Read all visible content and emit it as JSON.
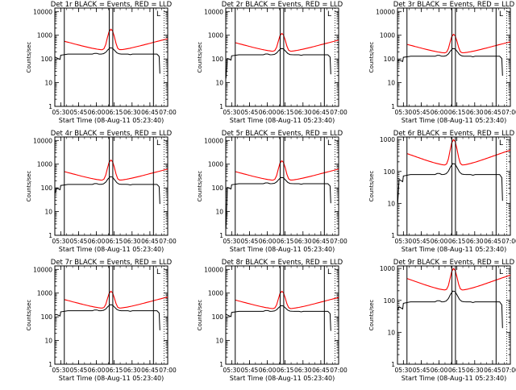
{
  "chart_data": [
    {
      "type": "line",
      "title": "Det 1r BLACK = Events, RED = LLD",
      "xlabel": "Start Time (08-Aug-11 05:23:40)",
      "ylabel": "Counts/sec",
      "ylog": true,
      "ylim": [
        1,
        14000
      ],
      "xlim": [
        5.417,
        7.0
      ],
      "x_tick_labels": [
        "05:30",
        "05:45",
        "06:00",
        "06:15",
        "06:30",
        "06:45",
        "07:00"
      ],
      "y_tick_labels": [
        "1",
        "10",
        "100",
        "1000",
        "10000"
      ],
      "markers": [
        5.55,
        6.18,
        6.23,
        6.8
      ],
      "corner_mark": "L",
      "profile": {
        "red_base": 230,
        "red_peak": 1800,
        "black_base": 160,
        "black_peak": 300,
        "black_start": 120
      }
    },
    {
      "type": "line",
      "title": "Det 2r BLACK = Events, RED = LLD",
      "xlabel": "Start Time (08-Aug-11 05:23:40)",
      "ylabel": "Counts/sec",
      "ylog": true,
      "ylim": [
        1,
        14000
      ],
      "xlim": [
        5.417,
        7.0
      ],
      "x_tick_labels": [
        "05:30",
        "05:45",
        "06:00",
        "06:15",
        "06:30",
        "06:45",
        "07:00"
      ],
      "y_tick_labels": [
        "1",
        "10",
        "100",
        "1000",
        "10000"
      ],
      "markers": [
        5.55,
        6.18,
        6.23,
        6.8
      ],
      "corner_mark": "L",
      "profile": {
        "red_base": 200,
        "red_peak": 1200,
        "black_base": 150,
        "black_peak": 280,
        "black_start": 15
      }
    },
    {
      "type": "line",
      "title": "Det 3r BLACK = Events, RED = LLD",
      "xlabel": "Start Time (08-Aug-11 05:23:40)",
      "ylabel": "Counts/sec",
      "ylog": true,
      "ylim": [
        1,
        14000
      ],
      "xlim": [
        5.417,
        7.0
      ],
      "x_tick_labels": [
        "05:30",
        "05:45",
        "06:00",
        "06:15",
        "06:30",
        "06:45",
        "07:00"
      ],
      "y_tick_labels": [
        "1",
        "10",
        "100",
        "1000",
        "10000"
      ],
      "markers": [
        5.55,
        6.18,
        6.23,
        6.8
      ],
      "corner_mark": "L",
      "profile": {
        "red_base": 170,
        "red_peak": 1100,
        "black_base": 130,
        "black_peak": 280,
        "black_start": 80
      }
    },
    {
      "type": "line",
      "title": "Det 4r BLACK = Events, RED = LLD",
      "xlabel": "Start Time (08-Aug-11 05:23:40)",
      "ylabel": "Counts/sec",
      "ylog": true,
      "ylim": [
        1,
        14000
      ],
      "xlim": [
        5.417,
        7.0
      ],
      "x_tick_labels": [
        "05:30",
        "05:45",
        "06:00",
        "06:15",
        "06:30",
        "06:45",
        "07:00"
      ],
      "y_tick_labels": [
        "1",
        "10",
        "100",
        "1000",
        "10000"
      ],
      "markers": [
        5.55,
        6.18,
        6.23,
        6.8
      ],
      "corner_mark": "L",
      "profile": {
        "red_base": 200,
        "red_peak": 1500,
        "black_base": 140,
        "black_peak": 300,
        "black_start": 60
      }
    },
    {
      "type": "line",
      "title": "Det 5r BLACK = Events, RED = LLD",
      "xlabel": "Start Time (08-Aug-11 05:23:40)",
      "ylabel": "Counts/sec",
      "ylog": true,
      "ylim": [
        1,
        14000
      ],
      "xlim": [
        5.417,
        7.0
      ],
      "x_tick_labels": [
        "05:30",
        "05:45",
        "06:00",
        "06:15",
        "06:30",
        "06:45",
        "07:00"
      ],
      "y_tick_labels": [
        "1",
        "10",
        "100",
        "1000",
        "10000"
      ],
      "markers": [
        5.55,
        6.18,
        6.23,
        6.8
      ],
      "corner_mark": "L",
      "profile": {
        "red_base": 200,
        "red_peak": 1400,
        "black_base": 150,
        "black_peak": 280,
        "black_start": 2
      }
    },
    {
      "type": "line",
      "title": "Det 6r BLACK = Events, RED = LLD",
      "xlabel": "Start Time (08-Aug-11 05:23:40)",
      "ylabel": "Counts/sec",
      "ylog": true,
      "ylim": [
        1,
        1200
      ],
      "xlim": [
        5.417,
        7.0
      ],
      "x_tick_labels": [
        "05:30",
        "05:45",
        "06:00",
        "06:15",
        "06:30",
        "06:45",
        "07:00"
      ],
      "y_tick_labels": [
        "1",
        "10",
        "100",
        "1000"
      ],
      "markers": [
        5.55,
        6.18,
        6.23,
        6.8
      ],
      "corner_mark": "L",
      "profile": {
        "red_base": 150,
        "red_peak": 1000,
        "black_base": 80,
        "black_peak": 180,
        "black_start": 10
      }
    },
    {
      "type": "line",
      "title": "Det 7r BLACK = Events, RED = LLD",
      "xlabel": "Start Time (08-Aug-11 05:23:40)",
      "ylabel": "Counts/sec",
      "ylog": true,
      "ylim": [
        1,
        14000
      ],
      "xlim": [
        5.417,
        7.0
      ],
      "x_tick_labels": [
        "05:30",
        "05:45",
        "06:00",
        "06:15",
        "06:30",
        "06:45",
        "07:00"
      ],
      "y_tick_labels": [
        "1",
        "10",
        "100",
        "1000",
        "10000"
      ],
      "markers": [
        5.55,
        6.18,
        6.23,
        6.8
      ],
      "corner_mark": "L",
      "profile": {
        "red_base": 220,
        "red_peak": 1200,
        "black_base": 180,
        "black_peak": 330,
        "black_start": 120
      }
    },
    {
      "type": "line",
      "title": "Det 8r BLACK = Events, RED = LLD",
      "xlabel": "Start Time (08-Aug-11 05:23:40)",
      "ylabel": "Counts/sec",
      "ylog": true,
      "ylim": [
        1,
        14000
      ],
      "xlim": [
        5.417,
        7.0
      ],
      "x_tick_labels": [
        "05:30",
        "05:45",
        "06:00",
        "06:15",
        "06:30",
        "06:45",
        "07:00"
      ],
      "y_tick_labels": [
        "1",
        "10",
        "100",
        "1000",
        "10000"
      ],
      "markers": [
        5.55,
        6.18,
        6.23,
        6.8
      ],
      "corner_mark": "L",
      "profile": {
        "red_base": 210,
        "red_peak": 1200,
        "black_base": 170,
        "black_peak": 300,
        "black_start": 130
      }
    },
    {
      "type": "line",
      "title": "Det 9r BLACK = Events, RED = LLD",
      "xlabel": "Start Time (08-Aug-11 05:23:40)",
      "ylabel": "Counts/sec",
      "ylog": true,
      "ylim": [
        1,
        1200
      ],
      "xlim": [
        5.417,
        7.0
      ],
      "x_tick_labels": [
        "05:30",
        "05:45",
        "06:00",
        "06:15",
        "06:30",
        "06:45",
        "07:00"
      ],
      "y_tick_labels": [
        "1",
        "10",
        "100",
        "1000"
      ],
      "markers": [
        5.55,
        6.18,
        6.23,
        6.8
      ],
      "corner_mark": "L",
      "profile": {
        "red_base": 200,
        "red_peak": 1000,
        "black_base": 90,
        "black_peak": 200,
        "black_start": 50
      }
    }
  ],
  "colors": {
    "events": "#000000",
    "lld": "#ff0000",
    "marker": "#000000"
  }
}
